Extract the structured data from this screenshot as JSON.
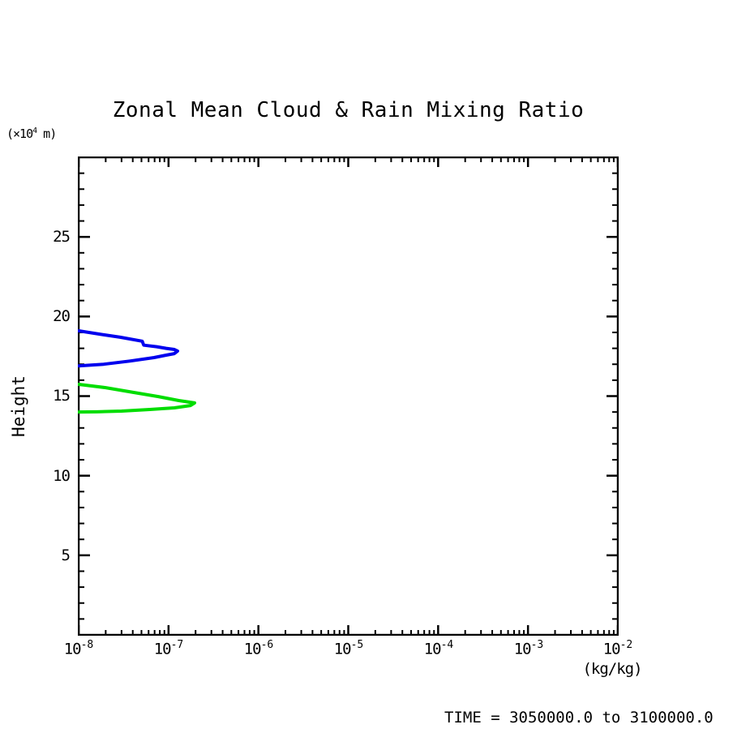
{
  "title": "Zonal Mean Cloud & Rain Mixing Ratio",
  "y_axis_unit": {
    "pre": "(×10",
    "sup": "4",
    "post": " m)"
  },
  "y_axis_label": "Height",
  "x_axis_unit": "(kg/kg)",
  "caption": "TIME = 3050000.0 to 3100000.0",
  "axes": {
    "x": {
      "scale": "log",
      "ticks": [
        {
          "base": "10",
          "exp": "-8"
        },
        {
          "base": "10",
          "exp": "-7"
        },
        {
          "base": "10",
          "exp": "-6"
        },
        {
          "base": "10",
          "exp": "-5"
        },
        {
          "base": "10",
          "exp": "-4"
        },
        {
          "base": "10",
          "exp": "-3"
        },
        {
          "base": "10",
          "exp": "-2"
        }
      ]
    },
    "y": {
      "min": 0,
      "max": 30,
      "minor_step": 1,
      "major_step": 5,
      "tick_labels": [
        "25",
        "20",
        "15",
        "10",
        "5"
      ]
    }
  },
  "chart_data": {
    "type": "line",
    "title": "Zonal Mean Cloud & Rain Mixing Ratio",
    "xlabel": "(kg/kg)",
    "ylabel": "Height (x10^4 m)",
    "x_scale": "log",
    "xlim": [
      1e-08,
      0.01
    ],
    "xlim_log": [
      -8,
      -2
    ],
    "ylim": [
      0,
      30
    ],
    "x_major_ticks": [
      1e-08,
      1e-07,
      1e-06,
      1e-05,
      0.0001,
      0.001,
      0.01
    ],
    "y_major_ticks": [
      5,
      10,
      15,
      20,
      25
    ],
    "grid": false,
    "legend": "none",
    "frame_color": "#000000",
    "caption": "TIME = 3050000.0 to 3100000.0",
    "series": [
      {
        "name": "cloud-mixing-ratio-contour",
        "color": "#0000ee",
        "points": [
          [
            1e-08,
            19.1
          ],
          [
            1.9e-08,
            18.85
          ],
          [
            2.9e-08,
            18.7
          ],
          [
            5.1e-08,
            18.45
          ],
          [
            5.3e-08,
            18.2
          ],
          [
            7.4e-08,
            18.1
          ],
          [
            9.4e-08,
            18.0
          ],
          [
            1.16e-07,
            17.93
          ],
          [
            1.26e-07,
            17.83
          ],
          [
            1.16e-07,
            17.67
          ],
          [
            9.4e-08,
            17.57
          ],
          [
            6.9e-08,
            17.42
          ],
          [
            3.7e-08,
            17.2
          ],
          [
            1.9e-08,
            17.0
          ],
          [
            1e-08,
            16.9
          ]
        ]
      },
      {
        "name": "rain-mixing-ratio-contour",
        "color": "#00dd00",
        "points": [
          [
            1e-08,
            15.74
          ],
          [
            2e-08,
            15.53
          ],
          [
            4.1e-08,
            15.23
          ],
          [
            7.7e-08,
            14.97
          ],
          [
            1.3e-07,
            14.72
          ],
          [
            1.95e-07,
            14.57
          ],
          [
            1.76e-07,
            14.41
          ],
          [
            1.16e-07,
            14.26
          ],
          [
            6.2e-08,
            14.16
          ],
          [
            3e-08,
            14.06
          ],
          [
            1.6e-08,
            14.01
          ],
          [
            1e-08,
            14.0
          ]
        ]
      }
    ]
  }
}
